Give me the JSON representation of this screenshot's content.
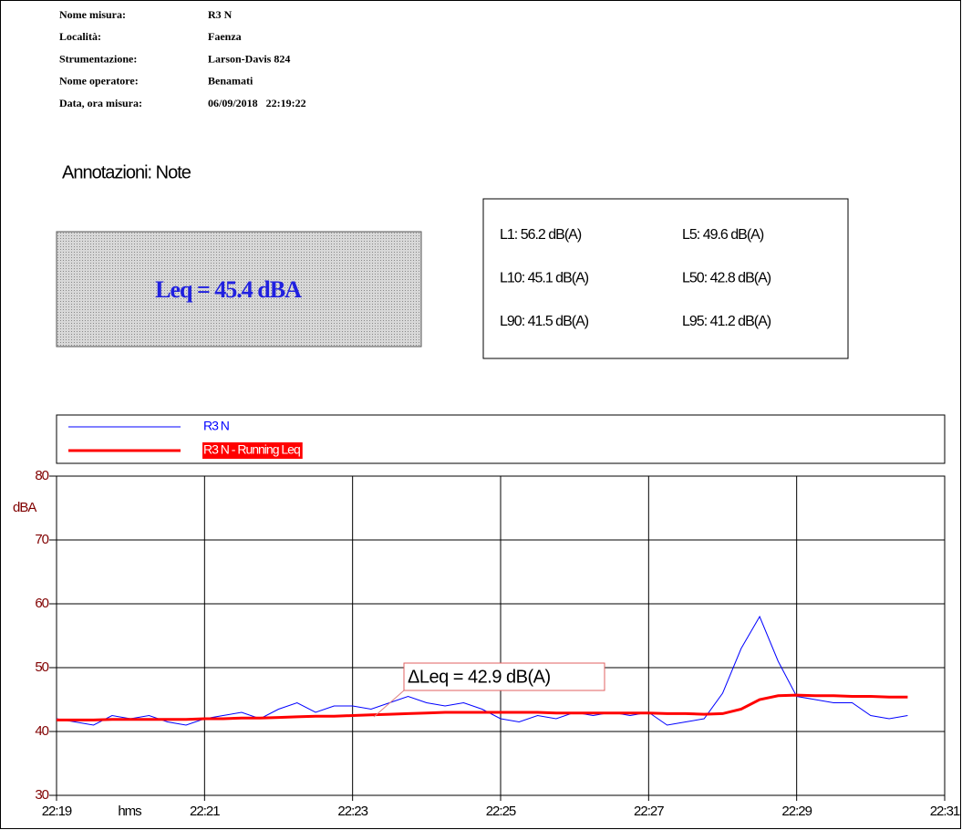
{
  "header": {
    "fields": [
      {
        "label": "Nome misura:",
        "value": "R3 N"
      },
      {
        "label": "Località:",
        "value": "Faenza"
      },
      {
        "label": "Strumentazione:",
        "value": "Larson-Davis 824"
      },
      {
        "label": "Nome operatore:",
        "value": "Benamati"
      },
      {
        "label": "Data, ora misura:",
        "value": "06/09/2018   22:19:22"
      }
    ],
    "notes": "Annotazioni: Note"
  },
  "leq": "Leq = 45.4 dBA",
  "percentiles": [
    "L1: 56.2 dB(A)",
    "L5: 49.6 dB(A)",
    "L10: 45.1 dB(A)",
    "L50: 42.8 dB(A)",
    "L90: 41.5 dB(A)",
    "L95: 41.2 dB(A)"
  ],
  "chart_data": {
    "type": "line",
    "ylabel": "dBA",
    "xlabel": "hms",
    "annotation": "ΔLeq = 42.9 dB(A)",
    "xlim": [
      "22:19",
      "22:31"
    ],
    "xticks": [
      "22:19",
      "22:21",
      "22:23",
      "22:25",
      "22:27",
      "22:29",
      "22:31"
    ],
    "ylim": [
      30,
      80
    ],
    "yticks": [
      30,
      40,
      50,
      60,
      70,
      80
    ],
    "grid": true,
    "x": [
      "22:19:00",
      "22:19:15",
      "22:19:30",
      "22:19:45",
      "22:20:00",
      "22:20:15",
      "22:20:30",
      "22:20:45",
      "22:21:00",
      "22:21:15",
      "22:21:30",
      "22:21:45",
      "22:22:00",
      "22:22:15",
      "22:22:30",
      "22:22:45",
      "22:23:00",
      "22:23:15",
      "22:23:30",
      "22:23:45",
      "22:24:00",
      "22:24:15",
      "22:24:30",
      "22:24:45",
      "22:25:00",
      "22:25:15",
      "22:25:30",
      "22:25:45",
      "22:26:00",
      "22:26:15",
      "22:26:30",
      "22:26:45",
      "22:27:00",
      "22:27:15",
      "22:27:30",
      "22:27:45",
      "22:28:00",
      "22:28:15",
      "22:28:30",
      "22:28:45",
      "22:29:00",
      "22:29:15",
      "22:29:30",
      "22:29:45",
      "22:30:00",
      "22:30:15",
      "22:30:30"
    ],
    "series": [
      {
        "name": "R3 N",
        "color": "#0000ff",
        "values": [
          42,
          41.5,
          41,
          42.5,
          42,
          42.5,
          41.5,
          41,
          42,
          42.5,
          43,
          42,
          43.5,
          44.5,
          43,
          44,
          44,
          43.5,
          44.5,
          45.5,
          44.5,
          44,
          44.5,
          43.5,
          42,
          41.5,
          42.5,
          42,
          43,
          42.5,
          43,
          42.5,
          43,
          41,
          41.5,
          42,
          46,
          53,
          58,
          51,
          45.5,
          45,
          44.5,
          44.5,
          42.5,
          42,
          42.5
        ]
      },
      {
        "name": "R3 N - Running Leq",
        "color": "#ff0000",
        "values": [
          41.8,
          41.8,
          41.8,
          41.9,
          41.9,
          41.9,
          41.9,
          41.9,
          42,
          42,
          42.1,
          42.1,
          42.2,
          42.3,
          42.4,
          42.4,
          42.5,
          42.6,
          42.7,
          42.8,
          42.9,
          43,
          43,
          43,
          43,
          43,
          43,
          42.9,
          42.9,
          42.9,
          42.9,
          42.9,
          42.9,
          42.8,
          42.8,
          42.7,
          42.8,
          43.5,
          45,
          45.6,
          45.7,
          45.6,
          45.6,
          45.5,
          45.5,
          45.4,
          45.4
        ]
      }
    ]
  }
}
